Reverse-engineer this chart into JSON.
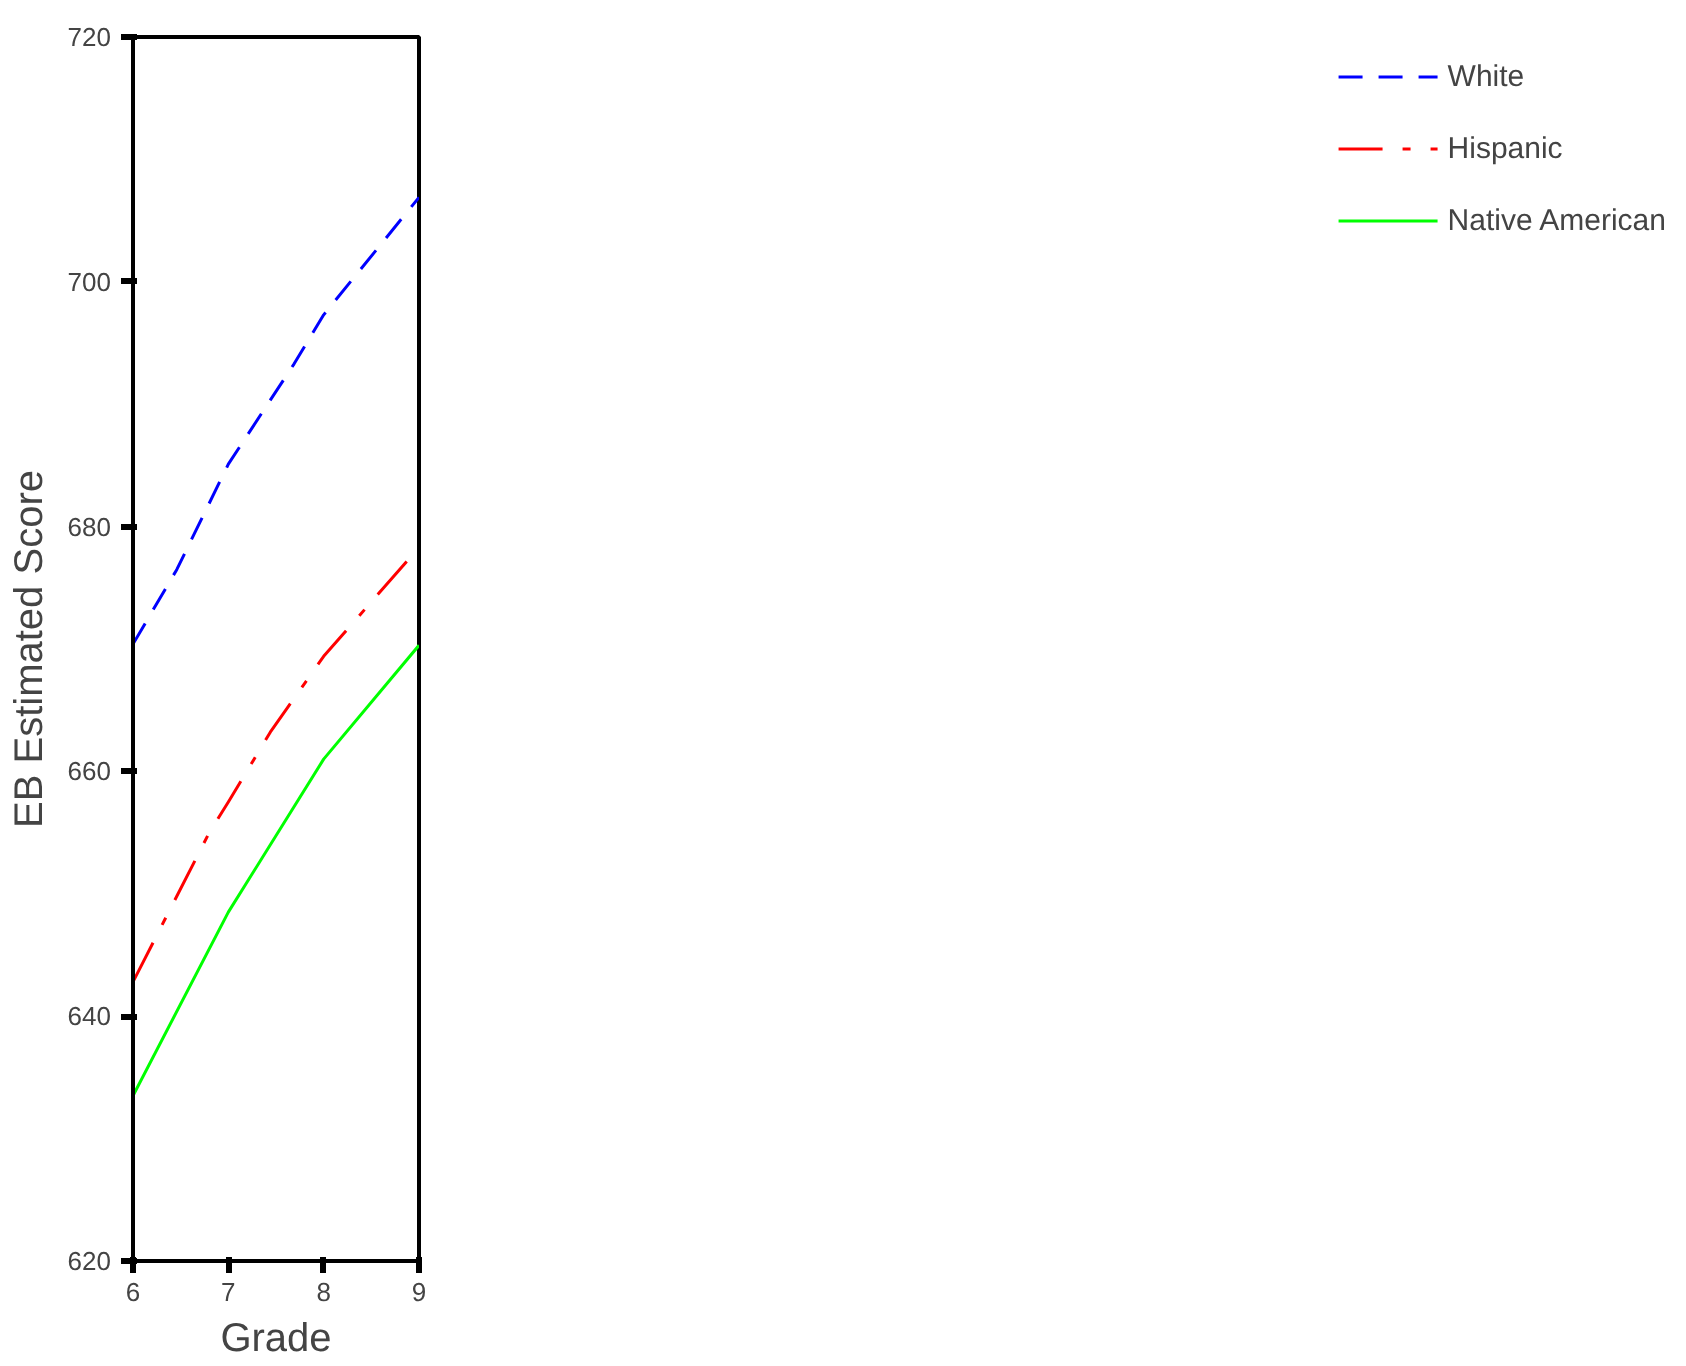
{
  "chart_data": {
    "type": "line",
    "xlabel": "Grade",
    "ylabel": "EB Estimated Score",
    "xlim": [
      6,
      9
    ],
    "xticks": [
      6,
      7,
      8,
      9
    ],
    "ylim": [
      620,
      720
    ],
    "yticks": [
      620,
      640,
      660,
      680,
      700,
      720
    ],
    "grid": false,
    "legend": "right",
    "marker": "none",
    "series": [
      {
        "name": "White",
        "color": "#0000ff",
        "line_style": "dashed",
        "x": [
          6,
          6.46,
          7,
          7.69,
          8,
          9
        ],
        "values": [
          670.4,
          676.5,
          685.1,
          693.3,
          697.3,
          706.9
        ]
      },
      {
        "name": "Hispanic",
        "color": "#ff0000",
        "line_style": "dashdot",
        "x": [
          6,
          6.8,
          7,
          7.44,
          8,
          9
        ],
        "values": [
          642.8,
          655.0,
          657.5,
          663.2,
          669.4,
          678.3
        ]
      },
      {
        "name": "Native American",
        "color": "#00ff00",
        "line_style": "solid",
        "x": [
          6,
          7,
          8,
          9
        ],
        "values": [
          633.5,
          648.5,
          661.0,
          670.3
        ]
      }
    ]
  }
}
